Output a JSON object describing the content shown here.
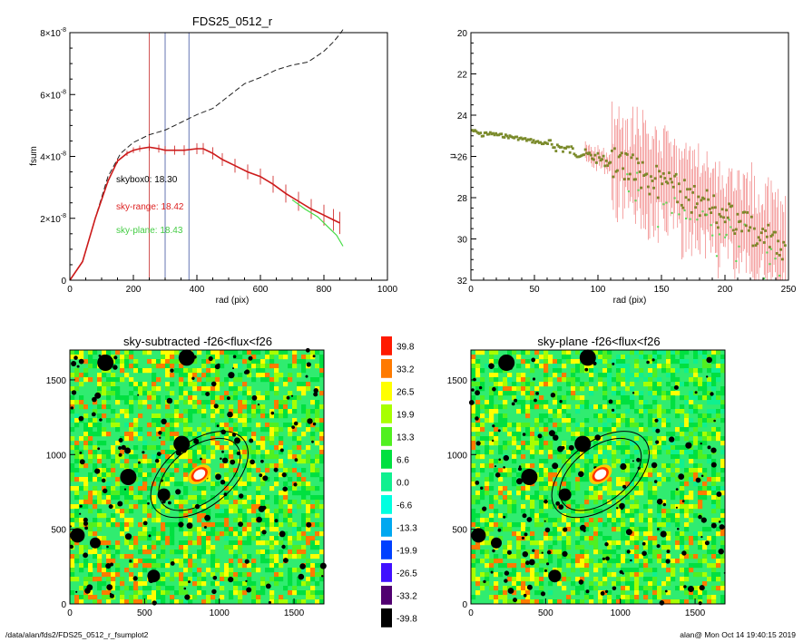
{
  "footer": {
    "path": "/data/alan/fds2/FDS25_0512_r_fsumplot2",
    "stamp": "alan@  Mon Oct 14 19:40:15 2019"
  },
  "colors": {
    "fsum_main": "#cc1a1a",
    "fsum_plane": "#44dd44",
    "fsum_box": "#000000",
    "vline_red": "#cc4444",
    "vline_blue": "#5566aa",
    "sb_points": "#7a8a2a",
    "sb_err": "#ee6666"
  },
  "chart_data": [
    {
      "type": "line",
      "title": "FDS25_0512_r",
      "xlabel": "rad (pix)",
      "ylabel": "fsum",
      "xlim": [
        0,
        1000
      ],
      "ylim": [
        0,
        8e-08
      ],
      "xticks": [
        "0",
        "200",
        "400",
        "600",
        "800",
        "1000"
      ],
      "ytick_values": [
        0,
        2,
        4,
        6,
        8
      ],
      "ytick_exp": "-8",
      "vlines": [
        {
          "x": 250,
          "color": "red"
        },
        {
          "x": 300,
          "color": "blue"
        },
        {
          "x": 375,
          "color": "blue"
        }
      ],
      "annotations": [
        {
          "text": "skybox0: 18.30",
          "color": "black"
        },
        {
          "text": "sky-range: 18.42",
          "color": "red"
        },
        {
          "text": "sky-plane: 18.43",
          "color": "green"
        }
      ],
      "series": [
        {
          "style": "dashed",
          "x": [
            0,
            40,
            80,
            120,
            160,
            200,
            250,
            300,
            350,
            400,
            450,
            500,
            550,
            600,
            650,
            700,
            750,
            800,
            830,
            850,
            860
          ],
          "y": [
            0,
            0.6,
            2.0,
            3.35,
            4.1,
            4.45,
            4.7,
            4.85,
            5.1,
            5.35,
            5.55,
            5.95,
            6.35,
            6.55,
            6.8,
            6.95,
            7.05,
            7.4,
            7.7,
            7.95,
            8.1
          ]
        },
        {
          "style": "solid-red-errorbars",
          "x": [
            0,
            40,
            80,
            120,
            150,
            180,
            200,
            220,
            250,
            280,
            300,
            330,
            360,
            400,
            420,
            450,
            480,
            520,
            560,
            600,
            640,
            680,
            720,
            760,
            800,
            830,
            850
          ],
          "y": [
            0,
            0.6,
            2.0,
            3.2,
            3.85,
            4.1,
            4.2,
            4.25,
            4.3,
            4.25,
            4.2,
            4.2,
            4.2,
            4.25,
            4.25,
            4.1,
            3.9,
            3.7,
            3.5,
            3.35,
            3.1,
            2.8,
            2.55,
            2.3,
            2.1,
            1.95,
            1.85
          ]
        },
        {
          "style": "solid-green",
          "x": [
            700,
            740,
            780,
            810,
            840,
            860
          ],
          "y": [
            2.6,
            2.3,
            2.05,
            1.75,
            1.45,
            1.1
          ]
        }
      ]
    },
    {
      "type": "scatter",
      "xlabel": "rad (pix)",
      "ylabel": "μ",
      "xlim": [
        0,
        250
      ],
      "ylim": [
        32,
        20
      ],
      "xticks": [
        "0",
        "50",
        "100",
        "150",
        "200",
        "250"
      ],
      "yticks": [
        "20",
        "22",
        "24",
        "26",
        "28",
        "30",
        "32"
      ]
    },
    {
      "type": "heatmap",
      "title": "sky-subtracted -f26<flux<f26",
      "xlim": [
        0,
        1700
      ],
      "ylim": [
        0,
        1700
      ],
      "xticks": [
        "0",
        "500",
        "1000",
        "1500"
      ],
      "yticks": [
        "0",
        "500",
        "1000",
        "1500"
      ]
    },
    {
      "type": "heatmap",
      "title": "sky-plane -f26<flux<f26",
      "xlim": [
        0,
        1700
      ],
      "ylim": [
        0,
        1700
      ],
      "xticks": [
        "0",
        "500",
        "1000",
        "1500"
      ],
      "yticks": [
        "0",
        "500",
        "1000",
        "1500"
      ]
    },
    {
      "type": "colorbar",
      "labels": [
        "39.8",
        "33.2",
        "26.5",
        "19.9",
        "13.3",
        "6.6",
        "0.0",
        "-6.6",
        "-13.3",
        "-19.9",
        "-26.5",
        "-33.2",
        "-39.8"
      ],
      "colors": [
        "#ff1a00",
        "#ff7a00",
        "#ffff00",
        "#a8ff00",
        "#50f020",
        "#00e040",
        "#10f090",
        "#00ffe0",
        "#00a8f0",
        "#0040ff",
        "#4010ff",
        "#500070",
        "#000000"
      ]
    }
  ]
}
